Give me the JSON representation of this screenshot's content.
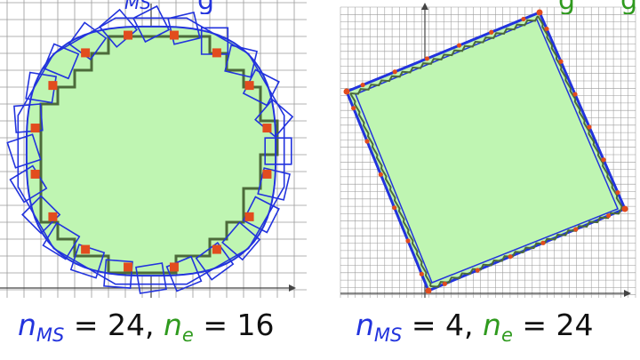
{
  "colors": {
    "blue": "#2233dd",
    "green_text": "#2f9a1e",
    "fill_green": "#bff5b2",
    "orange": "#e24c1e",
    "grid": "#9a9a9a",
    "axis": "#444444",
    "staircase": "#4c6a3a"
  },
  "header_fragments": {
    "blue_sub": "MS",
    "blue_word": "g",
    "green_word": "g",
    "green_word_end": "g"
  },
  "panels": [
    {
      "shape": "rounded-diamond",
      "caption": {
        "n_main": "n",
        "ms_sub": "MS",
        "ms_value": "= 24,",
        "n2": "n",
        "e_sub": "e",
        "e_value": "= 16"
      }
    },
    {
      "shape": "rotated-square",
      "caption": {
        "n_main": "n",
        "ms_sub": "MS",
        "ms_value": "= 4,",
        "n2": "n",
        "e_sub": "e",
        "e_value": "= 24"
      }
    }
  ]
}
